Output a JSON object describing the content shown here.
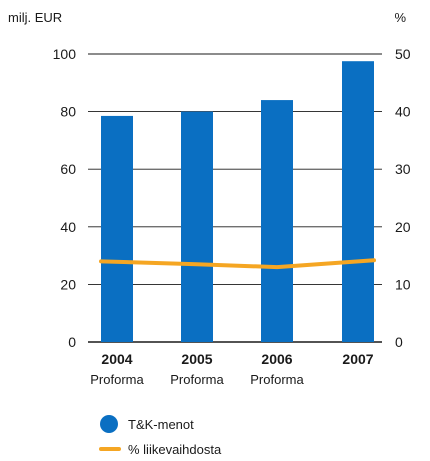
{
  "chart_data": {
    "type": "bar",
    "categories": [
      "2004",
      "2005",
      "2006",
      "2007"
    ],
    "category_sublabels": [
      "Proforma",
      "Proforma",
      "Proforma",
      ""
    ],
    "y_left": {
      "unit": "milj. EUR",
      "ylim": [
        0,
        100
      ],
      "ticks": [
        "0",
        "20",
        "40",
        "60",
        "80",
        "100"
      ]
    },
    "y_right": {
      "unit": "%",
      "ylim": [
        0,
        50
      ],
      "ticks": [
        "0",
        "10",
        "20",
        "30",
        "40",
        "50"
      ]
    },
    "series": [
      {
        "name": "T&K-menot",
        "kind": "bar",
        "axis": "left",
        "values": [
          78.5,
          80,
          84,
          97.5
        ],
        "color": "#0a6fc2"
      },
      {
        "name": "% liikevaihdosta",
        "kind": "line",
        "axis": "right",
        "values": [
          14,
          13.5,
          13,
          14.2
        ],
        "color": "#f5a623"
      }
    ],
    "grid": "horizontal",
    "legend_position": "bottom-left"
  }
}
